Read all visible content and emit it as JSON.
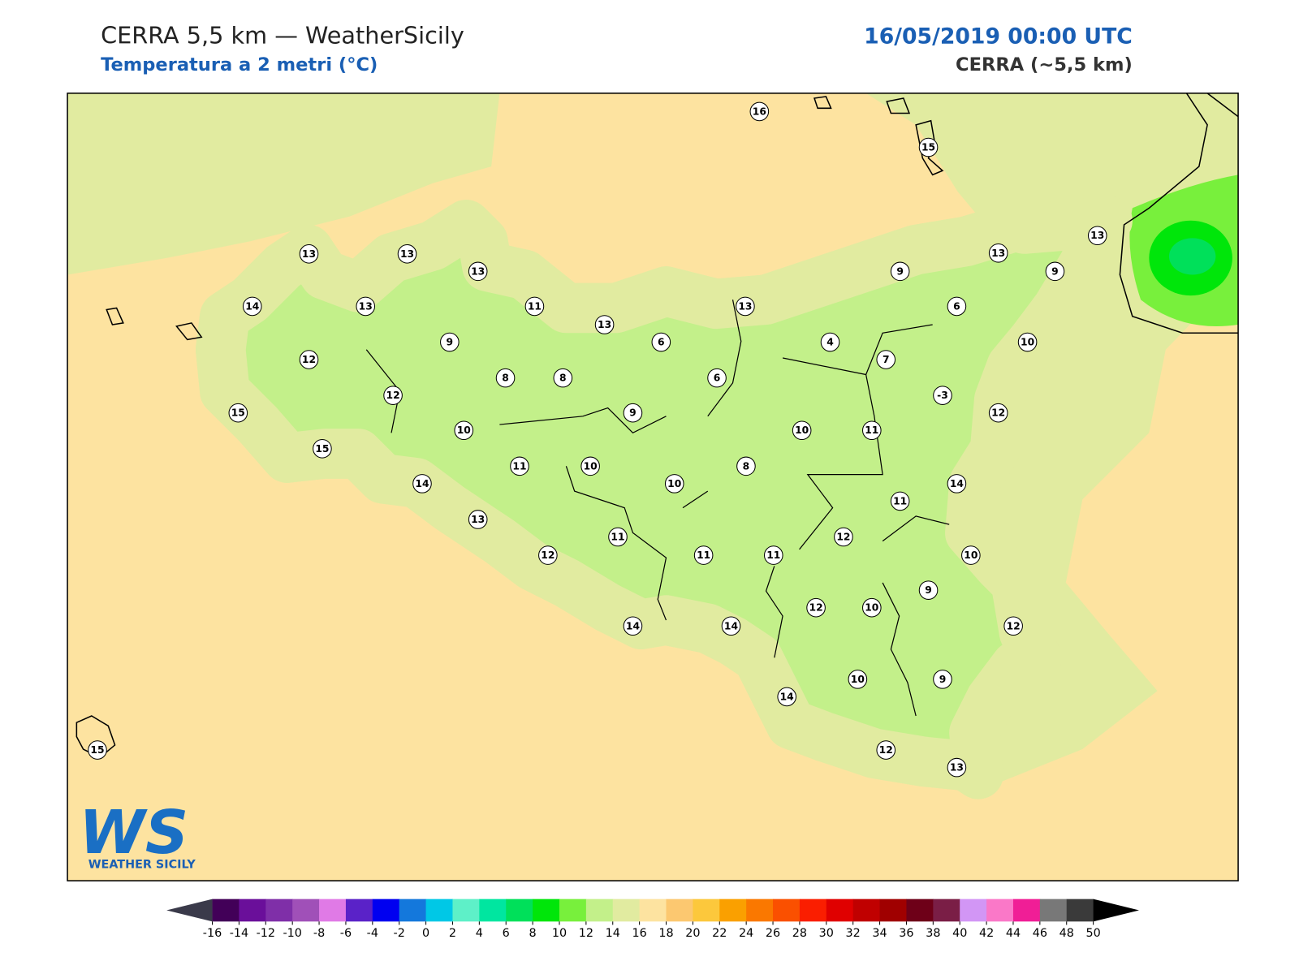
{
  "header": {
    "title": "CERRA 5,5 km — WeatherSicily",
    "subtitle": "Temperatura a 2 metri (°C)",
    "datetime": "16/05/2019 00:00 UTC",
    "source": "CERRA (~5,5 km)"
  },
  "stations": [
    16,
    15,
    13,
    13,
    13,
    13,
    13,
    14,
    13,
    11,
    13,
    13,
    9,
    9,
    6,
    9,
    6,
    4,
    7,
    10,
    12,
    8,
    8,
    6,
    -3,
    12,
    15,
    9,
    12,
    10,
    10,
    11,
    15,
    11,
    10,
    10,
    8,
    14,
    14,
    11,
    13,
    11,
    12,
    12,
    11,
    11,
    10,
    9,
    12,
    10,
    12,
    14,
    14,
    10,
    9,
    14,
    12,
    13,
    15
  ],
  "colorbar": {
    "ticks": [
      -16,
      -14,
      -12,
      -10,
      -8,
      -6,
      -4,
      -2,
      0,
      2,
      4,
      6,
      8,
      10,
      12,
      14,
      16,
      18,
      20,
      22,
      24,
      26,
      28,
      30,
      32,
      34,
      36,
      38,
      40,
      42,
      44,
      46,
      48,
      50
    ],
    "colors": [
      "#420058",
      "#6a0f9a",
      "#7f2fa8",
      "#a050b8",
      "#e07ae6",
      "#5a22c8",
      "#0000f0",
      "#1478dc",
      "#00c8e6",
      "#5ef0c8",
      "#00e6a0",
      "#00e05a",
      "#00e60a",
      "#78f03c",
      "#c3f08a",
      "#e1eba0",
      "#fde3a0",
      "#fcc870",
      "#fcc83c",
      "#faa000",
      "#fa7800",
      "#fa5000",
      "#fa1e00",
      "#e00000",
      "#c00000",
      "#a00000",
      "#6e0018",
      "#7a1e46",
      "#d296f5",
      "#fa78c8",
      "#f01e96",
      "#787878",
      "#3a3a3a"
    ],
    "under_color": "#3a3a4a",
    "over_color": "#000000"
  },
  "logo": {
    "text": "WS",
    "caption": "WEATHER SICILY"
  }
}
